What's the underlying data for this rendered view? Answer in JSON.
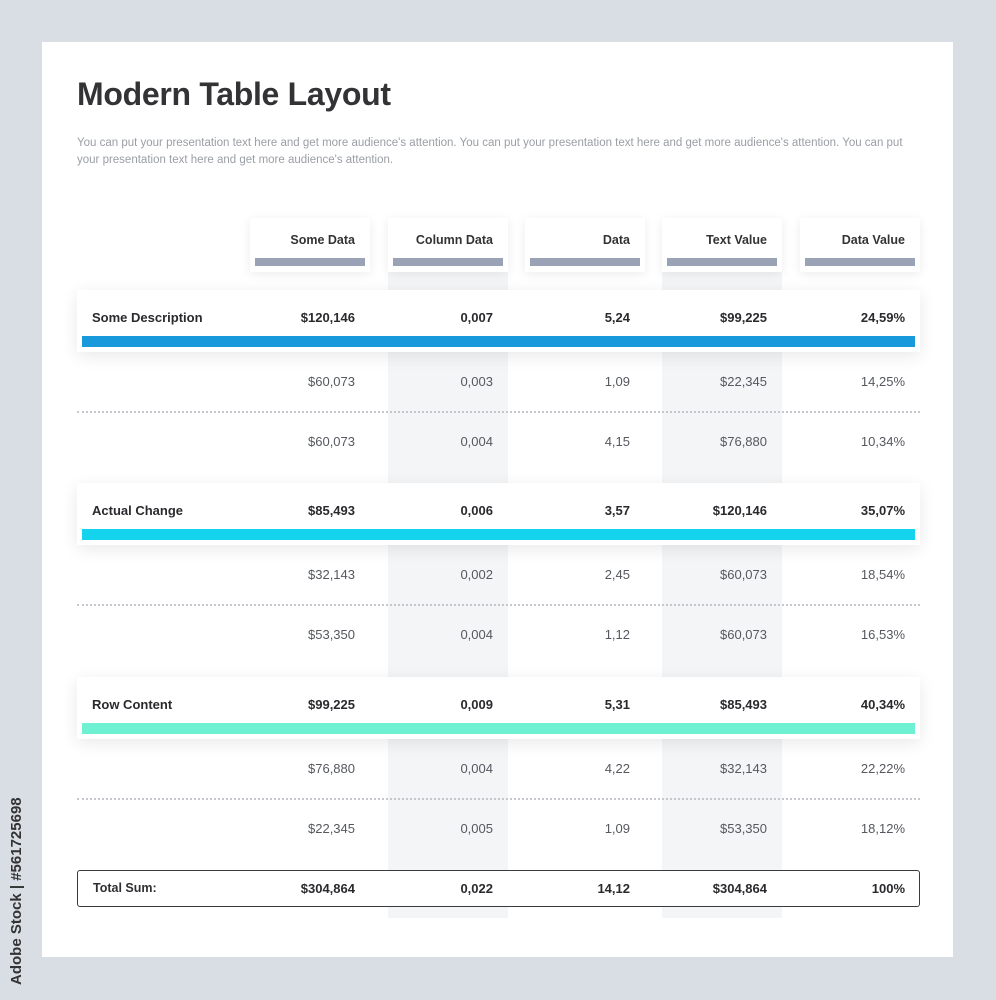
{
  "title": "Modern Table Layout",
  "description": "You can put your presentation text here and get more audience's attention. You can put your presentation text here and get more audience's attention. You can put your presentation text here and get more audience's attention.",
  "columns": [
    "Some Data",
    "Column Data",
    "Data",
    "Text Value",
    "Data Value"
  ],
  "colors": {
    "header_bar": "#9aa3b5",
    "column_shade": "#f3f5f7"
  },
  "groups": [
    {
      "label": "Some Description",
      "color": "#1899dc",
      "values": [
        "$120,146",
        "0,007",
        "5,24",
        "$99,225",
        "24,59%"
      ],
      "rows": [
        [
          "$60,073",
          "0,003",
          "1,09",
          "$22,345",
          "14,25%"
        ],
        [
          "$60,073",
          "0,004",
          "4,15",
          "$76,880",
          "10,34%"
        ]
      ]
    },
    {
      "label": "Actual Change",
      "color": "#14d3ec",
      "values": [
        "$85,493",
        "0,006",
        "3,57",
        "$120,146",
        "35,07%"
      ],
      "rows": [
        [
          "$32,143",
          "0,002",
          "2,45",
          "$60,073",
          "18,54%"
        ],
        [
          "$53,350",
          "0,004",
          "1,12",
          "$60,073",
          "16,53%"
        ]
      ]
    },
    {
      "label": "Row Content",
      "color": "#6ef0d2",
      "values": [
        "$99,225",
        "0,009",
        "5,31",
        "$85,493",
        "40,34%"
      ],
      "rows": [
        [
          "$76,880",
          "0,004",
          "4,22",
          "$32,143",
          "22,22%"
        ],
        [
          "$22,345",
          "0,005",
          "1,09",
          "$53,350",
          "18,12%"
        ]
      ]
    }
  ],
  "total": {
    "label": "Total Sum:",
    "values": [
      "$304,864",
      "0,022",
      "14,12",
      "$304,864",
      "100%"
    ]
  },
  "watermark": "Adobe Stock | #561725698"
}
